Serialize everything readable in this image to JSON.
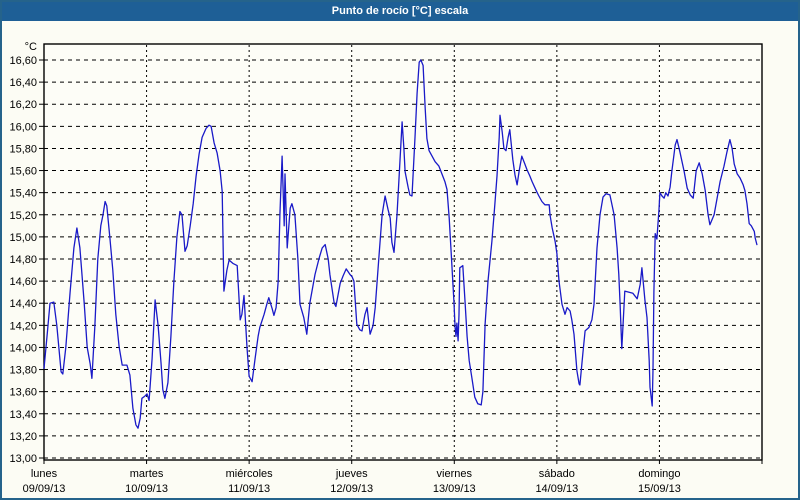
{
  "window": {
    "title": "Punto de rocío [°C] escala"
  },
  "colors": {
    "titlebar_bg": "#1e5f96",
    "titlebar_text": "#ffffff",
    "window_border": "#25638b",
    "background": "#fcfcf4",
    "plot_background": "#fdfdf7",
    "grid": "#000000",
    "axis": "#000000",
    "line": "#1a1ac8"
  },
  "chart_data": {
    "type": "line",
    "title": "Punto de rocío [°C] escala",
    "ylabel": "°C",
    "ylim": [
      13.0,
      16.75
    ],
    "ytick_step": 0.2,
    "grid": "dashed, horizontal every 0.2 °C, vertical at day boundaries",
    "legend": "none",
    "x_unit": "hours since lunes 09/09/13 00:00",
    "xlim_hours": [
      0,
      168
    ],
    "ytick_values": [
      16.6,
      16.4,
      16.2,
      16.0,
      15.8,
      15.6,
      15.4,
      15.2,
      15.0,
      14.8,
      14.6,
      14.4,
      14.2,
      14.0,
      13.8,
      13.6,
      13.4,
      13.2,
      13.0
    ],
    "ytick_labels": [
      "16,60",
      "16,40",
      "16,20",
      "16,00",
      "15,80",
      "15,60",
      "15,40",
      "15,20",
      "15,00",
      "14,80",
      "14,60",
      "14,40",
      "14,20",
      "14,00",
      "13,80",
      "13,60",
      "13,40",
      "13,20",
      "13,00"
    ],
    "days": [
      {
        "name": "lunes",
        "date": "09/09/13"
      },
      {
        "name": "martes",
        "date": "10/09/13"
      },
      {
        "name": "miércoles",
        "date": "11/09/13"
      },
      {
        "name": "jueves",
        "date": "12/09/13"
      },
      {
        "name": "viernes",
        "date": "13/09/13"
      },
      {
        "name": "sábado",
        "date": "14/09/13"
      },
      {
        "name": "domingo",
        "date": "15/09/13"
      }
    ],
    "series": [
      {
        "name": "Punto de rocío [°C]",
        "color": "#1a1ac8",
        "points": [
          [
            0.0,
            13.81
          ],
          [
            0.7,
            14.1
          ],
          [
            1.4,
            14.4
          ],
          [
            2.3,
            14.41
          ],
          [
            3.0,
            14.2
          ],
          [
            4.0,
            13.78
          ],
          [
            4.4,
            13.76
          ],
          [
            5.1,
            14.0
          ],
          [
            6.1,
            14.5
          ],
          [
            7.0,
            14.9
          ],
          [
            7.7,
            15.08
          ],
          [
            8.4,
            14.9
          ],
          [
            9.4,
            14.4
          ],
          [
            10.1,
            14.0
          ],
          [
            10.8,
            13.85
          ],
          [
            11.2,
            13.72
          ],
          [
            11.9,
            14.2
          ],
          [
            12.6,
            14.8
          ],
          [
            13.3,
            15.1
          ],
          [
            13.8,
            15.2
          ],
          [
            14.3,
            15.32
          ],
          [
            14.7,
            15.28
          ],
          [
            15.4,
            15.0
          ],
          [
            16.1,
            14.7
          ],
          [
            16.8,
            14.3
          ],
          [
            17.6,
            14.0
          ],
          [
            18.3,
            13.84
          ],
          [
            19.4,
            13.84
          ],
          [
            20.1,
            13.75
          ],
          [
            20.8,
            13.45
          ],
          [
            21.5,
            13.3
          ],
          [
            22.0,
            13.27
          ],
          [
            22.5,
            13.36
          ],
          [
            22.9,
            13.54
          ],
          [
            23.6,
            13.56
          ],
          [
            24.1,
            13.58
          ],
          [
            24.6,
            13.52
          ],
          [
            25.3,
            13.9
          ],
          [
            26.0,
            14.43
          ],
          [
            26.7,
            14.2
          ],
          [
            27.4,
            13.85
          ],
          [
            27.8,
            13.62
          ],
          [
            28.3,
            13.54
          ],
          [
            29.0,
            13.68
          ],
          [
            29.7,
            14.1
          ],
          [
            30.4,
            14.6
          ],
          [
            31.1,
            15.0
          ],
          [
            31.8,
            15.23
          ],
          [
            32.3,
            15.2
          ],
          [
            33.0,
            14.87
          ],
          [
            33.5,
            14.92
          ],
          [
            34.2,
            15.1
          ],
          [
            34.9,
            15.3
          ],
          [
            35.6,
            15.55
          ],
          [
            36.3,
            15.75
          ],
          [
            37.0,
            15.9
          ],
          [
            37.9,
            15.98
          ],
          [
            38.6,
            16.01
          ],
          [
            39.1,
            16.0
          ],
          [
            39.8,
            15.85
          ],
          [
            40.5,
            15.76
          ],
          [
            41.2,
            15.6
          ],
          [
            41.7,
            15.41
          ],
          [
            42.1,
            14.51
          ],
          [
            42.8,
            14.7
          ],
          [
            43.3,
            14.79
          ],
          [
            44.2,
            14.76
          ],
          [
            45.2,
            14.74
          ],
          [
            45.9,
            14.25
          ],
          [
            46.3,
            14.3
          ],
          [
            46.8,
            14.47
          ],
          [
            47.5,
            14.0
          ],
          [
            48.0,
            13.74
          ],
          [
            48.7,
            13.69
          ],
          [
            49.4,
            13.9
          ],
          [
            50.1,
            14.1
          ],
          [
            50.5,
            14.18
          ],
          [
            51.5,
            14.3
          ],
          [
            52.2,
            14.4
          ],
          [
            52.6,
            14.45
          ],
          [
            53.4,
            14.35
          ],
          [
            53.8,
            14.29
          ],
          [
            54.3,
            14.36
          ],
          [
            54.8,
            14.6
          ],
          [
            55.2,
            15.2
          ],
          [
            55.7,
            15.73
          ],
          [
            56.2,
            15.1
          ],
          [
            56.4,
            15.57
          ],
          [
            56.9,
            14.9
          ],
          [
            57.6,
            15.26
          ],
          [
            58.0,
            15.3
          ],
          [
            58.7,
            15.2
          ],
          [
            59.4,
            14.8
          ],
          [
            59.9,
            14.39
          ],
          [
            60.8,
            14.27
          ],
          [
            61.5,
            14.12
          ],
          [
            62.2,
            14.4
          ],
          [
            63.4,
            14.66
          ],
          [
            64.4,
            14.81
          ],
          [
            65.1,
            14.9
          ],
          [
            65.8,
            14.93
          ],
          [
            66.5,
            14.8
          ],
          [
            66.9,
            14.66
          ],
          [
            67.9,
            14.4
          ],
          [
            68.3,
            14.37
          ],
          [
            69.3,
            14.58
          ],
          [
            70.0,
            14.65
          ],
          [
            70.7,
            14.71
          ],
          [
            71.6,
            14.66
          ],
          [
            72.1,
            14.64
          ],
          [
            72.5,
            14.6
          ],
          [
            73.2,
            14.21
          ],
          [
            73.9,
            14.16
          ],
          [
            74.4,
            14.15
          ],
          [
            75.1,
            14.3
          ],
          [
            75.6,
            14.36
          ],
          [
            76.3,
            14.12
          ],
          [
            77.0,
            14.2
          ],
          [
            77.5,
            14.36
          ],
          [
            78.4,
            14.84
          ],
          [
            79.1,
            15.2
          ],
          [
            79.8,
            15.37
          ],
          [
            80.5,
            15.25
          ],
          [
            81.0,
            15.17
          ],
          [
            81.4,
            14.95
          ],
          [
            81.9,
            14.86
          ],
          [
            82.6,
            15.2
          ],
          [
            83.1,
            15.56
          ],
          [
            83.8,
            16.04
          ],
          [
            84.2,
            15.8
          ],
          [
            84.5,
            15.59
          ],
          [
            85.2,
            15.45
          ],
          [
            85.6,
            15.38
          ],
          [
            86.1,
            15.37
          ],
          [
            86.8,
            15.9
          ],
          [
            87.3,
            16.3
          ],
          [
            87.8,
            16.58
          ],
          [
            88.2,
            16.6
          ],
          [
            88.7,
            16.55
          ],
          [
            89.2,
            16.16
          ],
          [
            89.6,
            15.89
          ],
          [
            90.1,
            15.78
          ],
          [
            90.8,
            15.73
          ],
          [
            91.5,
            15.68
          ],
          [
            92.4,
            15.64
          ],
          [
            93.1,
            15.57
          ],
          [
            93.8,
            15.5
          ],
          [
            94.3,
            15.43
          ],
          [
            94.8,
            15.17
          ],
          [
            95.2,
            14.9
          ],
          [
            95.9,
            14.42
          ],
          [
            96.2,
            14.18
          ],
          [
            96.4,
            14.1
          ],
          [
            96.6,
            14.22
          ],
          [
            96.9,
            14.06
          ],
          [
            97.1,
            14.3
          ],
          [
            97.3,
            14.72
          ],
          [
            98.0,
            14.74
          ],
          [
            98.5,
            14.42
          ],
          [
            99.0,
            14.1
          ],
          [
            99.5,
            13.88
          ],
          [
            100.1,
            13.73
          ],
          [
            100.8,
            13.55
          ],
          [
            101.5,
            13.49
          ],
          [
            102.3,
            13.48
          ],
          [
            102.7,
            13.6
          ],
          [
            103.2,
            14.21
          ],
          [
            103.9,
            14.6
          ],
          [
            104.8,
            14.96
          ],
          [
            105.5,
            15.3
          ],
          [
            106.0,
            15.55
          ],
          [
            106.5,
            15.9
          ],
          [
            106.7,
            16.1
          ],
          [
            107.2,
            15.95
          ],
          [
            107.6,
            15.8
          ],
          [
            108.1,
            15.78
          ],
          [
            108.6,
            15.9
          ],
          [
            109.0,
            15.97
          ],
          [
            109.7,
            15.7
          ],
          [
            110.2,
            15.56
          ],
          [
            110.7,
            15.47
          ],
          [
            111.2,
            15.6
          ],
          [
            111.8,
            15.73
          ],
          [
            112.5,
            15.66
          ],
          [
            113.0,
            15.61
          ],
          [
            113.7,
            15.55
          ],
          [
            114.2,
            15.5
          ],
          [
            114.9,
            15.44
          ],
          [
            115.4,
            15.4
          ],
          [
            115.8,
            15.37
          ],
          [
            116.5,
            15.32
          ],
          [
            117.2,
            15.29
          ],
          [
            118.2,
            15.29
          ],
          [
            118.4,
            15.2
          ],
          [
            118.9,
            15.08
          ],
          [
            119.6,
            14.96
          ],
          [
            120.0,
            14.85
          ],
          [
            120.5,
            14.6
          ],
          [
            121.2,
            14.39
          ],
          [
            121.9,
            14.3
          ],
          [
            122.4,
            14.36
          ],
          [
            123.1,
            14.33
          ],
          [
            123.5,
            14.25
          ],
          [
            124.0,
            14.12
          ],
          [
            124.7,
            13.79
          ],
          [
            125.2,
            13.67
          ],
          [
            125.4,
            13.66
          ],
          [
            126.1,
            13.95
          ],
          [
            126.6,
            14.15
          ],
          [
            127.5,
            14.18
          ],
          [
            128.2,
            14.25
          ],
          [
            128.7,
            14.39
          ],
          [
            129.4,
            14.9
          ],
          [
            130.1,
            15.2
          ],
          [
            130.8,
            15.36
          ],
          [
            131.5,
            15.39
          ],
          [
            132.4,
            15.38
          ],
          [
            133.4,
            15.2
          ],
          [
            134.1,
            14.9
          ],
          [
            134.5,
            14.66
          ],
          [
            134.8,
            14.39
          ],
          [
            135.2,
            13.99
          ],
          [
            135.9,
            14.51
          ],
          [
            136.9,
            14.5
          ],
          [
            137.8,
            14.49
          ],
          [
            138.8,
            14.44
          ],
          [
            139.5,
            14.57
          ],
          [
            139.9,
            14.72
          ],
          [
            140.6,
            14.43
          ],
          [
            141.1,
            14.27
          ],
          [
            141.6,
            13.88
          ],
          [
            141.8,
            13.64
          ],
          [
            142.3,
            13.47
          ],
          [
            142.5,
            13.8
          ],
          [
            142.7,
            14.5
          ],
          [
            143.0,
            15.03
          ],
          [
            143.4,
            14.98
          ],
          [
            143.9,
            15.25
          ],
          [
            144.1,
            15.4
          ],
          [
            144.6,
            15.37
          ],
          [
            145.1,
            15.35
          ],
          [
            145.5,
            15.4
          ],
          [
            146.0,
            15.37
          ],
          [
            146.5,
            15.45
          ],
          [
            146.9,
            15.59
          ],
          [
            147.7,
            15.83
          ],
          [
            148.1,
            15.88
          ],
          [
            148.8,
            15.77
          ],
          [
            149.8,
            15.59
          ],
          [
            150.5,
            15.44
          ],
          [
            151.2,
            15.38
          ],
          [
            151.9,
            15.35
          ],
          [
            152.6,
            15.6
          ],
          [
            153.3,
            15.67
          ],
          [
            154.0,
            15.57
          ],
          [
            154.7,
            15.42
          ],
          [
            155.4,
            15.2
          ],
          [
            155.8,
            15.11
          ],
          [
            156.8,
            15.2
          ],
          [
            157.5,
            15.35
          ],
          [
            158.2,
            15.5
          ],
          [
            159.1,
            15.64
          ],
          [
            159.8,
            15.77
          ],
          [
            160.5,
            15.88
          ],
          [
            161.0,
            15.8
          ],
          [
            161.5,
            15.66
          ],
          [
            162.2,
            15.57
          ],
          [
            162.9,
            15.53
          ],
          [
            163.6,
            15.47
          ],
          [
            164.0,
            15.42
          ],
          [
            164.5,
            15.3
          ],
          [
            165.0,
            15.12
          ],
          [
            165.5,
            15.1
          ],
          [
            166.2,
            15.05
          ],
          [
            166.4,
            14.99
          ],
          [
            166.8,
            14.93
          ]
        ]
      }
    ]
  }
}
